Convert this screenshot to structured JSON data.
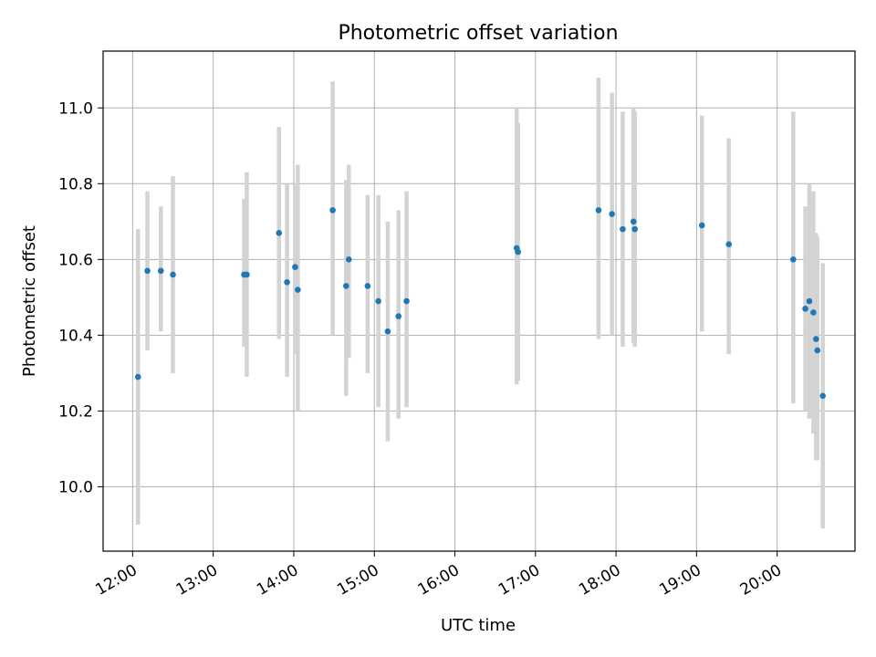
{
  "chart_data": {
    "type": "scatter",
    "title": "Photometric offset variation",
    "xlabel": "UTC time",
    "ylabel": "Photometric offset",
    "xlim": [
      "11:38",
      "20:58"
    ],
    "ylim": [
      9.83,
      11.15
    ],
    "x_tick_labels": [
      "12:00",
      "13:00",
      "14:00",
      "15:00",
      "16:00",
      "17:00",
      "18:00",
      "19:00",
      "20:00"
    ],
    "y_tick_values": [
      10.0,
      10.2,
      10.4,
      10.6,
      10.8,
      11.0
    ],
    "y_tick_labels": [
      "10.0",
      "10.2",
      "10.4",
      "10.6",
      "10.8",
      "11.0"
    ],
    "grid": true,
    "colors": {
      "points": "#1f77b4",
      "error_bars": "#d3d3d3"
    },
    "points": [
      {
        "x": "12:04",
        "y": 10.29,
        "lo": 9.9,
        "hi": 10.68
      },
      {
        "x": "12:11",
        "y": 10.57,
        "lo": 10.36,
        "hi": 10.78
      },
      {
        "x": "12:21",
        "y": 10.57,
        "lo": 10.41,
        "hi": 10.74
      },
      {
        "x": "12:30",
        "y": 10.56,
        "lo": 10.3,
        "hi": 10.82
      },
      {
        "x": "13:23",
        "y": 10.56,
        "lo": 10.37,
        "hi": 10.76
      },
      {
        "x": "13:25",
        "y": 10.56,
        "lo": 10.29,
        "hi": 10.83
      },
      {
        "x": "13:49",
        "y": 10.67,
        "lo": 10.39,
        "hi": 10.95
      },
      {
        "x": "13:55",
        "y": 10.54,
        "lo": 10.29,
        "hi": 10.8
      },
      {
        "x": "14:01",
        "y": 10.58,
        "lo": 10.35,
        "hi": 10.8
      },
      {
        "x": "14:03",
        "y": 10.52,
        "lo": 10.2,
        "hi": 10.85
      },
      {
        "x": "14:29",
        "y": 10.73,
        "lo": 10.4,
        "hi": 11.07
      },
      {
        "x": "14:39",
        "y": 10.53,
        "lo": 10.24,
        "hi": 10.81
      },
      {
        "x": "14:41",
        "y": 10.6,
        "lo": 10.34,
        "hi": 10.85
      },
      {
        "x": "14:55",
        "y": 10.53,
        "lo": 10.3,
        "hi": 10.77
      },
      {
        "x": "15:03",
        "y": 10.49,
        "lo": 10.21,
        "hi": 10.77
      },
      {
        "x": "15:10",
        "y": 10.41,
        "lo": 10.12,
        "hi": 10.7
      },
      {
        "x": "15:18",
        "y": 10.45,
        "lo": 10.18,
        "hi": 10.73
      },
      {
        "x": "15:24",
        "y": 10.49,
        "lo": 10.21,
        "hi": 10.78
      },
      {
        "x": "16:46",
        "y": 10.63,
        "lo": 10.27,
        "hi": 11.0
      },
      {
        "x": "16:47",
        "y": 10.62,
        "lo": 10.28,
        "hi": 10.96
      },
      {
        "x": "17:47",
        "y": 10.73,
        "lo": 10.39,
        "hi": 11.08
      },
      {
        "x": "17:57",
        "y": 10.72,
        "lo": 10.4,
        "hi": 11.04
      },
      {
        "x": "18:05",
        "y": 10.68,
        "lo": 10.37,
        "hi": 10.99
      },
      {
        "x": "18:13",
        "y": 10.7,
        "lo": 10.38,
        "hi": 11.0
      },
      {
        "x": "18:14",
        "y": 10.68,
        "lo": 10.37,
        "hi": 10.99
      },
      {
        "x": "19:04",
        "y": 10.69,
        "lo": 10.41,
        "hi": 10.98
      },
      {
        "x": "19:24",
        "y": 10.64,
        "lo": 10.35,
        "hi": 10.92
      },
      {
        "x": "20:12",
        "y": 10.6,
        "lo": 10.22,
        "hi": 10.99
      },
      {
        "x": "20:21",
        "y": 10.47,
        "lo": 10.2,
        "hi": 10.74
      },
      {
        "x": "20:24",
        "y": 10.49,
        "lo": 10.18,
        "hi": 10.8
      },
      {
        "x": "20:27",
        "y": 10.46,
        "lo": 10.14,
        "hi": 10.78
      },
      {
        "x": "20:29",
        "y": 10.39,
        "lo": 10.07,
        "hi": 10.67
      },
      {
        "x": "20:30",
        "y": 10.36,
        "lo": 10.07,
        "hi": 10.66
      },
      {
        "x": "20:34",
        "y": 10.24,
        "lo": 9.89,
        "hi": 10.59
      }
    ]
  }
}
